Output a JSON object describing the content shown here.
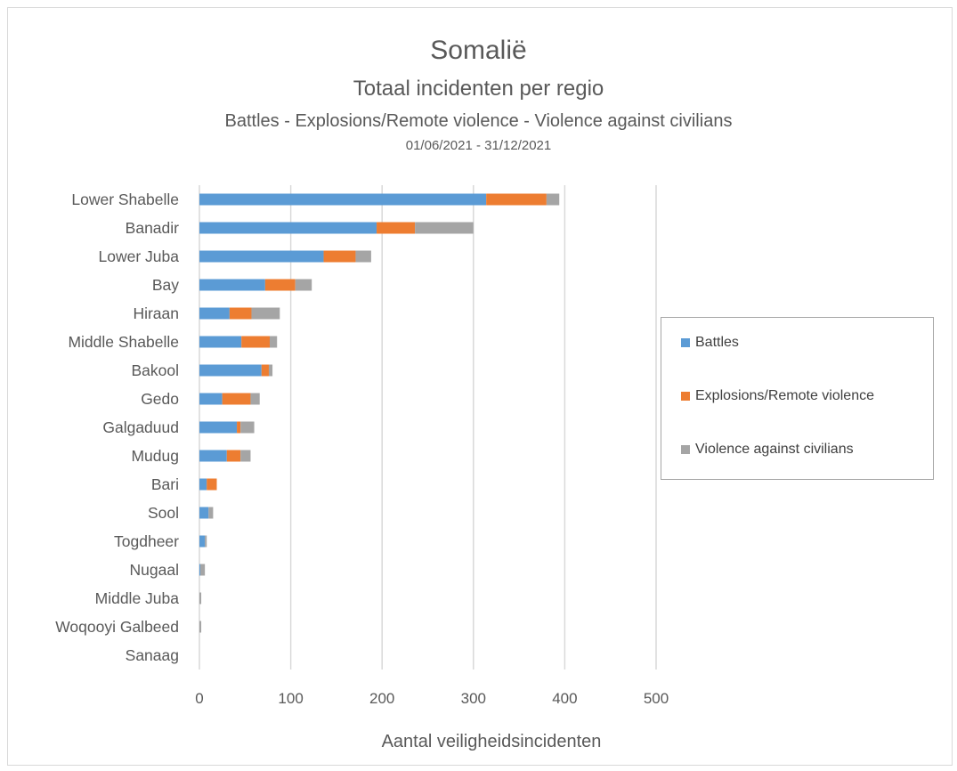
{
  "chart_data": {
    "type": "bar",
    "orientation": "horizontal",
    "stacked": true,
    "title": "Somalië",
    "subtitle": "Totaal incidenten per regio",
    "subtitle2": "Battles - Explosions/Remote violence - Violence against civilians",
    "subtitle3": "01/06/2021 - 31/12/2021",
    "xlabel": "Aantal veiligheidsincidenten",
    "ylabel": "",
    "xlim": [
      0,
      500
    ],
    "xticks": [
      0,
      100,
      200,
      300,
      400,
      500
    ],
    "grid": true,
    "legend_position": "right",
    "categories": [
      "Lower Shabelle",
      "Banadir",
      "Lower Juba",
      "Bay",
      "Hiraan",
      "Middle Shabelle",
      "Bakool",
      "Gedo",
      "Galgaduud",
      "Mudug",
      "Bari",
      "Sool",
      "Togdheer",
      "Nugaal",
      "Middle Juba",
      "Woqooyi Galbeed",
      "Sanaag"
    ],
    "series": [
      {
        "name": "Battles",
        "color": "#5b9bd5",
        "values": [
          314,
          194,
          136,
          72,
          33,
          46,
          68,
          25,
          41,
          30,
          8,
          10,
          6,
          1,
          0,
          0,
          0
        ]
      },
      {
        "name": "Explosions/Remote violence",
        "color": "#ed7d31",
        "values": [
          66,
          42,
          35,
          33,
          24,
          31,
          8,
          31,
          4,
          15,
          11,
          0,
          0,
          0,
          0,
          0,
          0
        ]
      },
      {
        "name": "Violence against civilians",
        "color": "#a5a5a5",
        "values": [
          14,
          64,
          17,
          18,
          31,
          8,
          4,
          10,
          15,
          11,
          0,
          5,
          2,
          5,
          2,
          2,
          0
        ]
      }
    ]
  }
}
